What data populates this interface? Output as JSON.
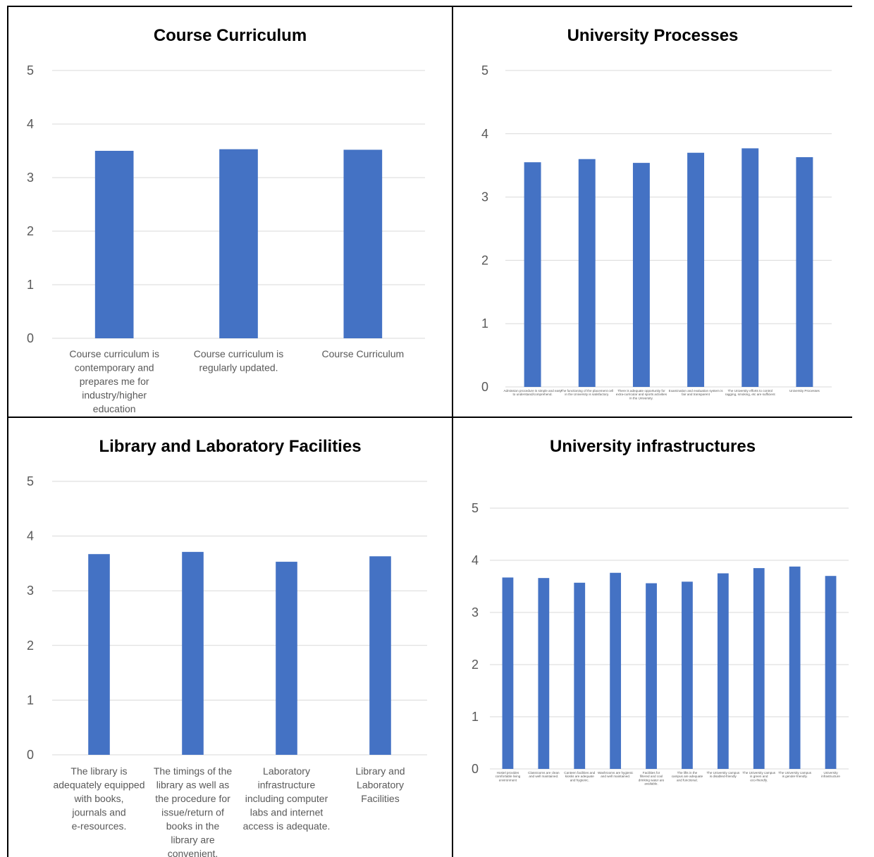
{
  "chart_data": [
    {
      "type": "bar",
      "title": "Course Curriculum",
      "categories": [
        "Course curriculum is contemporary and prepares me for industry/higher education",
        "Course curriculum is regularly updated.",
        "Course Curriculum"
      ],
      "values": [
        3.5,
        3.53,
        3.52
      ],
      "ylim": [
        0,
        5
      ],
      "yticks": [
        0,
        1,
        2,
        3,
        4,
        5
      ],
      "grid": true,
      "bar_color": "#4472c4"
    },
    {
      "type": "bar",
      "title": "University Processes",
      "categories": [
        "Admission procedure is simple and easy to understand/comprehend.",
        "The functioning of the placement cell in the University is satisfactory.",
        "There is adequate opportunity for extra-curricular and sports activities in the University.",
        "Examination and evaluation system is fair and transparent",
        "The University efforts to control ragging, smoking, etc are sufficient",
        "University Processes"
      ],
      "values": [
        3.55,
        3.6,
        3.54,
        3.7,
        3.77,
        3.63
      ],
      "ylim": [
        0,
        5
      ],
      "yticks": [
        0,
        1,
        2,
        3,
        4,
        5
      ],
      "grid": true,
      "bar_color": "#4472c4"
    },
    {
      "type": "bar",
      "title": "Library and Laboratory Facilities",
      "categories": [
        "The library is adequately equipped with books, journals and e-resources.",
        "The timings of the library as well as the procedure for issue/return of books in the library are convenient.",
        "Laboratory infrastructure including computer labs and internet access is adequate.",
        "Library and Laboratory Facilities"
      ],
      "values": [
        3.67,
        3.71,
        3.53,
        3.63
      ],
      "ylim": [
        0,
        5
      ],
      "yticks": [
        0,
        1,
        2,
        3,
        4,
        5
      ],
      "grid": true,
      "bar_color": "#4472c4"
    },
    {
      "type": "bar",
      "title": "University infrastructures",
      "categories": [
        "Hostel provides comfortable living environment",
        "Classrooms are clean and well maintained.",
        "Canteen facilities and kiosks are adequate and hygienic.",
        "Washrooms are hygienic and well maintained.",
        "Facilities for filtered and cool drinking water are available.",
        "The lifts in the campus are adequate and functional.",
        "The University campus is disabled-friendly",
        "The University campus is green and eco-friendly.",
        "The University campus is gender-friendly.",
        "University infrastructure"
      ],
      "values": [
        3.67,
        3.66,
        3.57,
        3.76,
        3.56,
        3.59,
        3.75,
        3.85,
        3.88,
        3.7
      ],
      "ylim": [
        0,
        5
      ],
      "yticks": [
        0,
        1,
        2,
        3,
        4,
        5
      ],
      "grid": true,
      "bar_color": "#4472c4"
    }
  ]
}
